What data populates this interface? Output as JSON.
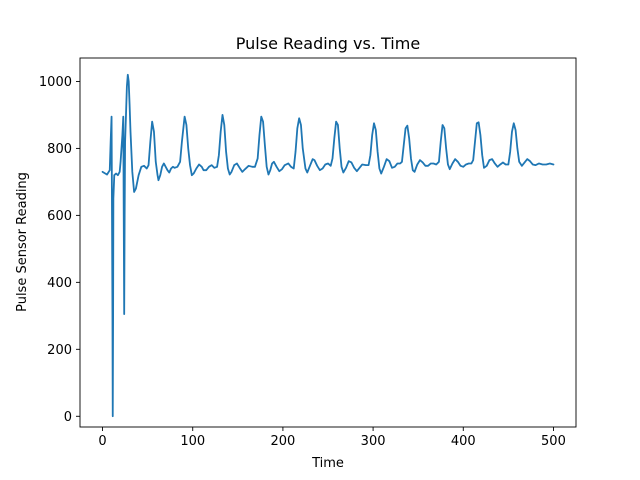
{
  "chart_data": {
    "type": "line",
    "title": "Pulse Reading vs. Time",
    "xlabel": "Time",
    "ylabel": "Pulse Sensor Reading",
    "xlim": [
      -25,
      525
    ],
    "ylim": [
      -32,
      1070
    ],
    "xticks": [
      0,
      100,
      200,
      300,
      400,
      500
    ],
    "yticks": [
      0,
      200,
      400,
      600,
      800,
      1000
    ],
    "grid": false,
    "line_color": "#1f77b4",
    "series": [
      {
        "points": [
          [
            0,
            730
          ],
          [
            3,
            725
          ],
          [
            5,
            722
          ],
          [
            8,
            735
          ],
          [
            9,
            820
          ],
          [
            10,
            895
          ],
          [
            10.5,
            600
          ],
          [
            11,
            300
          ],
          [
            11.3,
            0
          ],
          [
            11.7,
            300
          ],
          [
            12,
            650
          ],
          [
            13,
            720
          ],
          [
            15,
            725
          ],
          [
            17,
            720
          ],
          [
            19,
            730
          ],
          [
            20,
            760
          ],
          [
            22,
            840
          ],
          [
            23,
            895
          ],
          [
            23.5,
            600
          ],
          [
            24,
            305
          ],
          [
            24.5,
            600
          ],
          [
            25,
            820
          ],
          [
            26,
            900
          ],
          [
            27,
            985
          ],
          [
            28,
            1020
          ],
          [
            29,
            1000
          ],
          [
            30,
            930
          ],
          [
            31,
            850
          ],
          [
            33,
            730
          ],
          [
            35,
            670
          ],
          [
            37,
            680
          ],
          [
            40,
            720
          ],
          [
            43,
            745
          ],
          [
            46,
            748
          ],
          [
            49,
            740
          ],
          [
            51,
            750
          ],
          [
            53,
            820
          ],
          [
            55,
            880
          ],
          [
            57,
            850
          ],
          [
            59,
            760
          ],
          [
            61,
            720
          ],
          [
            62,
            705
          ],
          [
            64,
            720
          ],
          [
            66,
            745
          ],
          [
            68,
            755
          ],
          [
            70,
            745
          ],
          [
            72,
            735
          ],
          [
            74,
            728
          ],
          [
            76,
            740
          ],
          [
            78,
            745
          ],
          [
            80,
            742
          ],
          [
            83,
            745
          ],
          [
            86,
            760
          ],
          [
            88,
            820
          ],
          [
            91,
            895
          ],
          [
            93,
            870
          ],
          [
            95,
            800
          ],
          [
            97,
            750
          ],
          [
            99,
            720
          ],
          [
            101,
            725
          ],
          [
            104,
            740
          ],
          [
            107,
            752
          ],
          [
            110,
            745
          ],
          [
            112,
            735
          ],
          [
            115,
            735
          ],
          [
            118,
            745
          ],
          [
            121,
            750
          ],
          [
            124,
            742
          ],
          [
            127,
            745
          ],
          [
            129,
            780
          ],
          [
            131,
            850
          ],
          [
            133,
            900
          ],
          [
            135,
            870
          ],
          [
            137,
            790
          ],
          [
            139,
            740
          ],
          [
            141,
            722
          ],
          [
            143,
            730
          ],
          [
            146,
            750
          ],
          [
            149,
            755
          ],
          [
            152,
            742
          ],
          [
            155,
            730
          ],
          [
            158,
            738
          ],
          [
            162,
            748
          ],
          [
            166,
            745
          ],
          [
            169,
            745
          ],
          [
            172,
            770
          ],
          [
            174,
            840
          ],
          [
            176,
            895
          ],
          [
            178,
            880
          ],
          [
            180,
            810
          ],
          [
            182,
            745
          ],
          [
            184,
            722
          ],
          [
            186,
            735
          ],
          [
            188,
            755
          ],
          [
            190,
            760
          ],
          [
            193,
            745
          ],
          [
            196,
            732
          ],
          [
            199,
            738
          ],
          [
            202,
            750
          ],
          [
            206,
            755
          ],
          [
            209,
            745
          ],
          [
            212,
            740
          ],
          [
            214,
            790
          ],
          [
            216,
            860
          ],
          [
            218,
            890
          ],
          [
            220,
            870
          ],
          [
            222,
            800
          ],
          [
            225,
            740
          ],
          [
            227,
            728
          ],
          [
            230,
            748
          ],
          [
            233,
            768
          ],
          [
            235,
            765
          ],
          [
            238,
            748
          ],
          [
            241,
            735
          ],
          [
            244,
            740
          ],
          [
            247,
            752
          ],
          [
            250,
            755
          ],
          [
            253,
            748
          ],
          [
            255,
            770
          ],
          [
            257,
            830
          ],
          [
            259,
            880
          ],
          [
            261,
            870
          ],
          [
            263,
            800
          ],
          [
            265,
            745
          ],
          [
            267,
            728
          ],
          [
            270,
            742
          ],
          [
            273,
            762
          ],
          [
            276,
            758
          ],
          [
            279,
            742
          ],
          [
            282,
            732
          ],
          [
            285,
            742
          ],
          [
            288,
            752
          ],
          [
            292,
            750
          ],
          [
            295,
            750
          ],
          [
            297,
            780
          ],
          [
            299,
            840
          ],
          [
            301,
            875
          ],
          [
            303,
            855
          ],
          [
            305,
            790
          ],
          [
            307,
            740
          ],
          [
            309,
            725
          ],
          [
            312,
            745
          ],
          [
            315,
            768
          ],
          [
            318,
            762
          ],
          [
            321,
            742
          ],
          [
            324,
            745
          ],
          [
            327,
            755
          ],
          [
            330,
            755
          ],
          [
            332,
            760
          ],
          [
            334,
            810
          ],
          [
            336,
            860
          ],
          [
            338,
            868
          ],
          [
            340,
            830
          ],
          [
            342,
            770
          ],
          [
            344,
            735
          ],
          [
            346,
            730
          ],
          [
            349,
            752
          ],
          [
            352,
            765
          ],
          [
            355,
            758
          ],
          [
            358,
            748
          ],
          [
            361,
            748
          ],
          [
            364,
            755
          ],
          [
            367,
            755
          ],
          [
            370,
            752
          ],
          [
            373,
            760
          ],
          [
            375,
            820
          ],
          [
            377,
            870
          ],
          [
            379,
            860
          ],
          [
            381,
            800
          ],
          [
            383,
            752
          ],
          [
            385,
            738
          ],
          [
            388,
            755
          ],
          [
            391,
            768
          ],
          [
            394,
            760
          ],
          [
            397,
            748
          ],
          [
            400,
            745
          ],
          [
            403,
            752
          ],
          [
            406,
            755
          ],
          [
            409,
            755
          ],
          [
            411,
            765
          ],
          [
            413,
            820
          ],
          [
            415,
            875
          ],
          [
            417,
            878
          ],
          [
            419,
            840
          ],
          [
            421,
            780
          ],
          [
            423,
            742
          ],
          [
            426,
            748
          ],
          [
            429,
            765
          ],
          [
            432,
            768
          ],
          [
            435,
            755
          ],
          [
            438,
            745
          ],
          [
            441,
            752
          ],
          [
            444,
            758
          ],
          [
            447,
            752
          ],
          [
            450,
            752
          ],
          [
            452,
            790
          ],
          [
            454,
            850
          ],
          [
            456,
            875
          ],
          [
            458,
            855
          ],
          [
            460,
            800
          ],
          [
            462,
            760
          ],
          [
            465,
            748
          ],
          [
            468,
            758
          ],
          [
            471,
            768
          ],
          [
            474,
            762
          ],
          [
            477,
            752
          ],
          [
            480,
            750
          ],
          [
            484,
            755
          ],
          [
            488,
            752
          ],
          [
            492,
            752
          ],
          [
            496,
            755
          ],
          [
            500,
            752
          ]
        ]
      }
    ]
  }
}
